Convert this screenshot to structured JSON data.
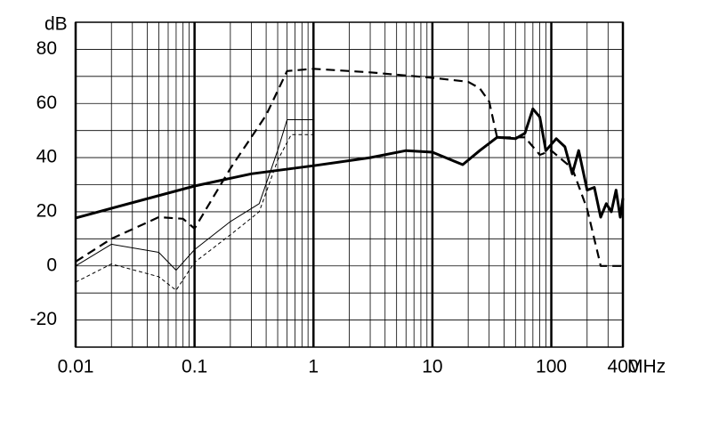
{
  "chart_data": {
    "type": "line",
    "x_label": "MHz",
    "y_label": "dB",
    "xscale": "log",
    "xlim": [
      0.01,
      400
    ],
    "ylim": [
      -30,
      90
    ],
    "xticks": [
      0.01,
      0.1,
      1,
      10,
      100,
      400
    ],
    "yticks": [
      -20,
      0,
      20,
      40,
      60,
      80
    ],
    "yminor": [
      -30,
      -10,
      10,
      30,
      50,
      70,
      90
    ],
    "grid": true,
    "minor_grid": true,
    "series": [
      {
        "color": "#000000",
        "width": 3,
        "dash": false,
        "x": [
          0.01,
          0.1,
          0.3,
          1,
          3,
          6,
          10,
          18,
          25,
          35,
          50,
          60,
          70,
          80,
          90,
          110,
          130,
          150,
          170,
          200,
          230,
          260,
          290,
          320,
          350,
          380,
          400
        ],
        "values": [
          17.7,
          29.5,
          34,
          37,
          40,
          42.6,
          42,
          37.4,
          42.6,
          47.5,
          47,
          49,
          58,
          55,
          42.6,
          47,
          44,
          34,
          42.6,
          28,
          29,
          18,
          23,
          20,
          28,
          18,
          25
        ]
      },
      {
        "color": "#000000",
        "width": 2.2,
        "dash": true,
        "x": [
          0.01,
          0.02,
          0.05,
          0.08,
          0.1,
          0.2,
          0.4,
          0.6,
          1,
          3,
          10,
          20,
          25,
          30,
          35,
          60,
          80,
          100,
          150,
          200,
          250,
          260,
          400
        ],
        "values": [
          1.6,
          10,
          18,
          17.4,
          13.8,
          36,
          55.7,
          72,
          72.8,
          71.5,
          69.5,
          68,
          65.6,
          60.7,
          47.5,
          47.5,
          41,
          42.6,
          36,
          21,
          3.3,
          0,
          0
        ]
      },
      {
        "color": "#000000",
        "width": 1,
        "dash": false,
        "x": [
          0.01,
          0.02,
          0.05,
          0.07,
          0.1,
          0.2,
          0.35,
          0.5,
          0.6,
          1
        ],
        "values": [
          0,
          8,
          5,
          -1.6,
          6,
          16.4,
          23,
          42.6,
          54,
          54
        ]
      },
      {
        "color": "#000000",
        "width": 1,
        "dash": true,
        "x": [
          0.01,
          0.02,
          0.05,
          0.07,
          0.1,
          0.2,
          0.35,
          0.5,
          0.65,
          1
        ],
        "values": [
          -6,
          0.7,
          -4,
          -9,
          1.3,
          11.5,
          20,
          39,
          48.5,
          48.5
        ]
      }
    ]
  }
}
